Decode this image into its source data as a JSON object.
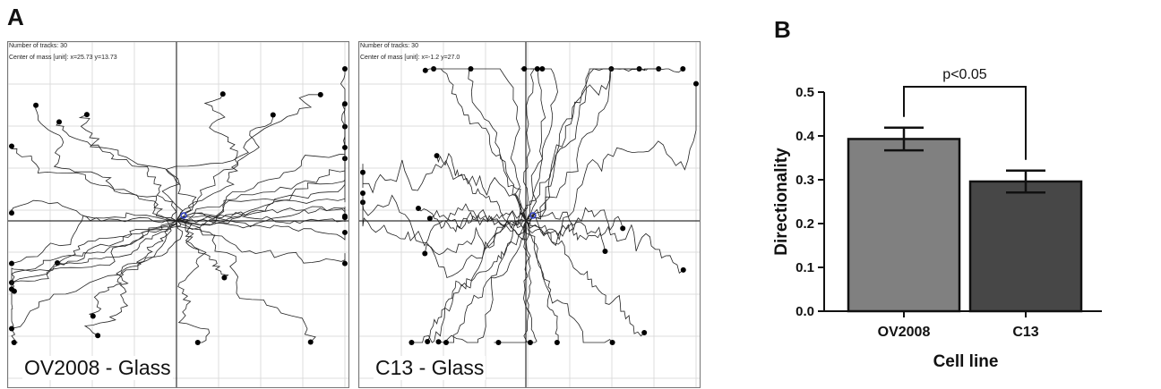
{
  "panels": {
    "a_letter": "A",
    "b_letter": "B"
  },
  "track_plots": [
    {
      "tracks_label": "Number of tracks: 30",
      "center_label": "Center of mass [unit]: x=25.73 y=13.73",
      "caption": "OV2008 - Glass"
    },
    {
      "tracks_label": "Number of tracks: 30",
      "center_label": "Center of mass [unit]: x=-1.2 y=27.0",
      "caption": "C13 - Glass"
    }
  ],
  "chart_data": {
    "type": "bar",
    "categories": [
      "OV2008",
      "C13"
    ],
    "values": [
      0.393,
      0.296
    ],
    "errors": [
      0.026,
      0.025
    ],
    "bar_colors": [
      "#808080",
      "#474747"
    ],
    "xlabel": "Cell line",
    "ylabel": "Directionality",
    "ylim": [
      0,
      0.5
    ],
    "yticks": [
      "0.0",
      "0.1",
      "0.2",
      "0.3",
      "0.4",
      "0.5"
    ],
    "annotation": "p<0.05"
  }
}
